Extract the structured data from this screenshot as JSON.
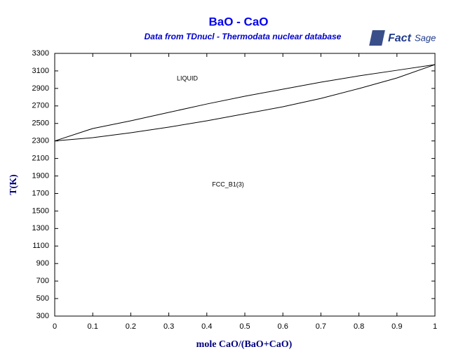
{
  "chart_data": {
    "type": "line",
    "title": "BaO - CaO",
    "subtitle": "Data from TDnucl - Thermodata nuclear database",
    "logo": {
      "main": "Fact",
      "sub": "Sage"
    },
    "x_label": "mole CaO/(BaO+CaO)",
    "y_label": "T(K)",
    "annotations": [
      "LIQUID",
      "FCC_B1(3)"
    ],
    "x": [
      0,
      0.1,
      0.2,
      0.3,
      0.4,
      0.5,
      0.6,
      0.7,
      0.8,
      0.9,
      1
    ],
    "series": [
      {
        "color": "#000000",
        "values": [
          2300,
          2442,
          2530,
          2626,
          2722,
          2811,
          2891,
          2971,
          3043,
          3107,
          3172
        ]
      },
      {
        "color": "#000000",
        "values": [
          2300,
          2337,
          2394,
          2458,
          2530,
          2610,
          2690,
          2786,
          2898,
          3019,
          3172
        ]
      }
    ],
    "xlim": [
      0,
      1
    ],
    "xticks": [
      0,
      0.1,
      0.2,
      0.3,
      0.4,
      0.5,
      0.6,
      0.7,
      0.8,
      0.9,
      1
    ],
    "ylim": [
      300,
      3300
    ],
    "yticks": [
      300,
      500,
      700,
      900,
      1100,
      1300,
      1500,
      1700,
      1900,
      2100,
      2300,
      2500,
      2700,
      2900,
      3100,
      3300
    ]
  }
}
